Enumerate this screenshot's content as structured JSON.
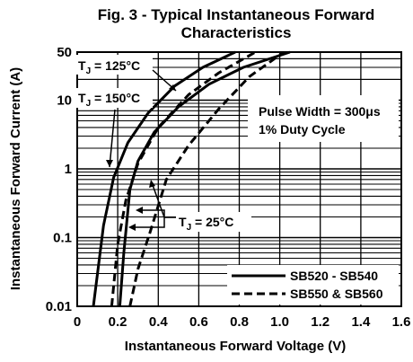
{
  "chart_data": {
    "type": "line",
    "title": "Fig. 3 - Typical Instantaneous Forward",
    "subtitle": "Characteristics",
    "xlabel": "Instantaneous Forward Voltage (V)",
    "ylabel": "Instantaneous Forward Current (A)",
    "xlim": [
      0,
      1.6
    ],
    "ylim": [
      0.01,
      50
    ],
    "y_scale": "log",
    "grid": true,
    "x_ticks": [
      "0",
      "0.2",
      "0.4",
      "0.6",
      "0.8",
      "1.0",
      "1.2",
      "1.4",
      "1.6"
    ],
    "y_ticks": [
      "0.01",
      "0.1",
      "1",
      "10",
      "50"
    ],
    "legend_position": "bottom-right",
    "annotations": {
      "tj125": {
        "main": "T",
        "sub": "J",
        "rest": " = 125°C"
      },
      "tj150": {
        "main": "T",
        "sub": "J",
        "rest": " = 150°C"
      },
      "tj25": {
        "main": "T",
        "sub": "J",
        "rest": " = 25°C"
      },
      "pulse_width": "Pulse Width = 300μs",
      "duty_cycle": "1% Duty Cycle"
    },
    "series": [
      {
        "name": "SB520 - SB540",
        "style": "solid",
        "temperature": "150°C",
        "x": [
          0.08,
          0.1,
          0.13,
          0.18,
          0.25,
          0.35,
          0.48,
          0.62,
          0.78
        ],
        "y": [
          0.01,
          0.03,
          0.15,
          0.75,
          2.4,
          6.5,
          16,
          30,
          50
        ]
      },
      {
        "name": "SB520 - SB540",
        "style": "solid",
        "temperature": "25°C",
        "x": [
          0.21,
          0.23,
          0.26,
          0.3,
          0.38,
          0.5,
          0.65,
          0.82,
          1.05
        ],
        "y": [
          0.01,
          0.06,
          0.5,
          1.3,
          3.4,
          8,
          17,
          30,
          50
        ]
      },
      {
        "name": "SB550 & SB560",
        "style": "dashed",
        "temperature": "125°C",
        "x": [
          0.17,
          0.2,
          0.24,
          0.3,
          0.4,
          0.55,
          0.7,
          0.88
        ],
        "y": [
          0.01,
          0.08,
          0.35,
          1.2,
          4,
          12,
          25,
          50
        ]
      },
      {
        "name": "SB550 & SB560",
        "style": "dashed",
        "temperature": "25°C",
        "x": [
          0.26,
          0.3,
          0.36,
          0.44,
          0.55,
          0.7,
          0.85,
          1.02
        ],
        "y": [
          0.01,
          0.035,
          0.12,
          0.7,
          2.2,
          7.5,
          22,
          50
        ]
      }
    ]
  }
}
